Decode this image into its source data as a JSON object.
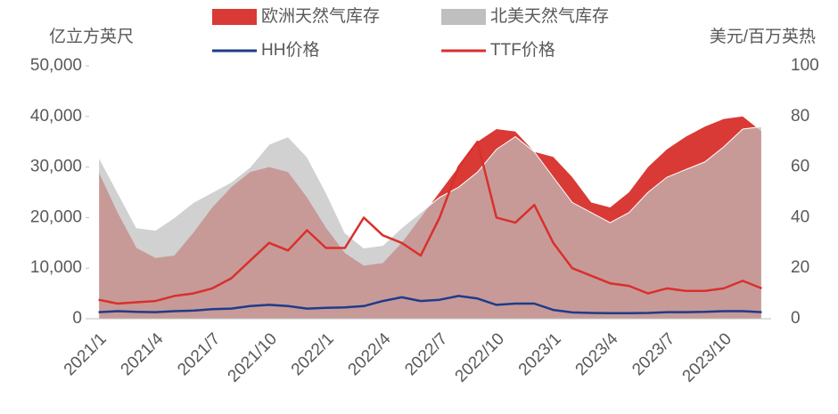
{
  "chart_data": {
    "type": "combo",
    "y_label": "亿立方英尺",
    "y2_label": "美元/百万英热",
    "categories": [
      "2021/1",
      null,
      null,
      "2021/4",
      null,
      null,
      "2021/7",
      null,
      null,
      "2021/10",
      null,
      null,
      "2022/1",
      null,
      null,
      "2022/4",
      null,
      null,
      "2022/7",
      null,
      null,
      "2022/10",
      null,
      null,
      "2023/1",
      null,
      null,
      "2023/4",
      null,
      null,
      "2023/7",
      null,
      null,
      "2023/10",
      null,
      null
    ],
    "ylim": [
      0,
      50000
    ],
    "yticks": [
      {
        "value": 0,
        "label": "0"
      },
      {
        "value": 10000,
        "label": "10,000"
      },
      {
        "value": 20000,
        "label": "20,000"
      },
      {
        "value": 30000,
        "label": "30,000"
      },
      {
        "value": 40000,
        "label": "40,000"
      },
      {
        "value": 50000,
        "label": "50,000"
      }
    ],
    "y2lim": [
      0,
      100
    ],
    "y2ticks": [
      0,
      20,
      40,
      60,
      80,
      100
    ],
    "series": [
      {
        "name": "欧洲天然气库存",
        "type": "area",
        "color": "#d93a35",
        "values": [
          29000,
          21000,
          14000,
          12000,
          12500,
          17000,
          22000,
          26000,
          29000,
          30000,
          29000,
          24000,
          18000,
          13000,
          10500,
          11000,
          15000,
          20000,
          25000,
          30000,
          35000,
          37500,
          37000,
          33000,
          32000,
          28000,
          23000,
          22000,
          25000,
          30000,
          33500,
          36000,
          38000,
          39500,
          40000,
          37000
        ]
      },
      {
        "name": "北美天然气库存",
        "type": "area",
        "color": "#bfbfbf",
        "values": [
          32000,
          25000,
          18000,
          17500,
          20000,
          23000,
          25000,
          27000,
          30000,
          34500,
          36000,
          32000,
          25000,
          17000,
          14000,
          14500,
          18000,
          21000,
          24000,
          26000,
          29000,
          33500,
          36000,
          33000,
          28000,
          23000,
          21000,
          19000,
          21000,
          25000,
          28000,
          29500,
          31000,
          34000,
          37500,
          38000
        ]
      },
      {
        "name": "HH价格",
        "type": "line",
        "axis": "y2",
        "color": "#1f3b8a",
        "values": [
          2.6,
          3,
          2.7,
          2.6,
          3,
          3.2,
          3.8,
          4,
          5,
          5.5,
          5,
          4,
          4.3,
          4.5,
          5,
          7,
          8.5,
          7,
          7.5,
          9,
          8,
          5.5,
          6,
          6,
          3.5,
          2.5,
          2.3,
          2.2,
          2.2,
          2.3,
          2.6,
          2.6,
          2.7,
          3,
          3,
          2.6
        ]
      },
      {
        "name": "TTF价格",
        "type": "line",
        "axis": "y2",
        "color": "#d9302c",
        "values": [
          7.5,
          6,
          6.5,
          7,
          9,
          10,
          12,
          16,
          23,
          30,
          27,
          35,
          28,
          28,
          40,
          33,
          30,
          25,
          40,
          60,
          70,
          40,
          38,
          45,
          30,
          20,
          17,
          14,
          13,
          10,
          12,
          11,
          11,
          12,
          15,
          12
        ]
      }
    ]
  }
}
